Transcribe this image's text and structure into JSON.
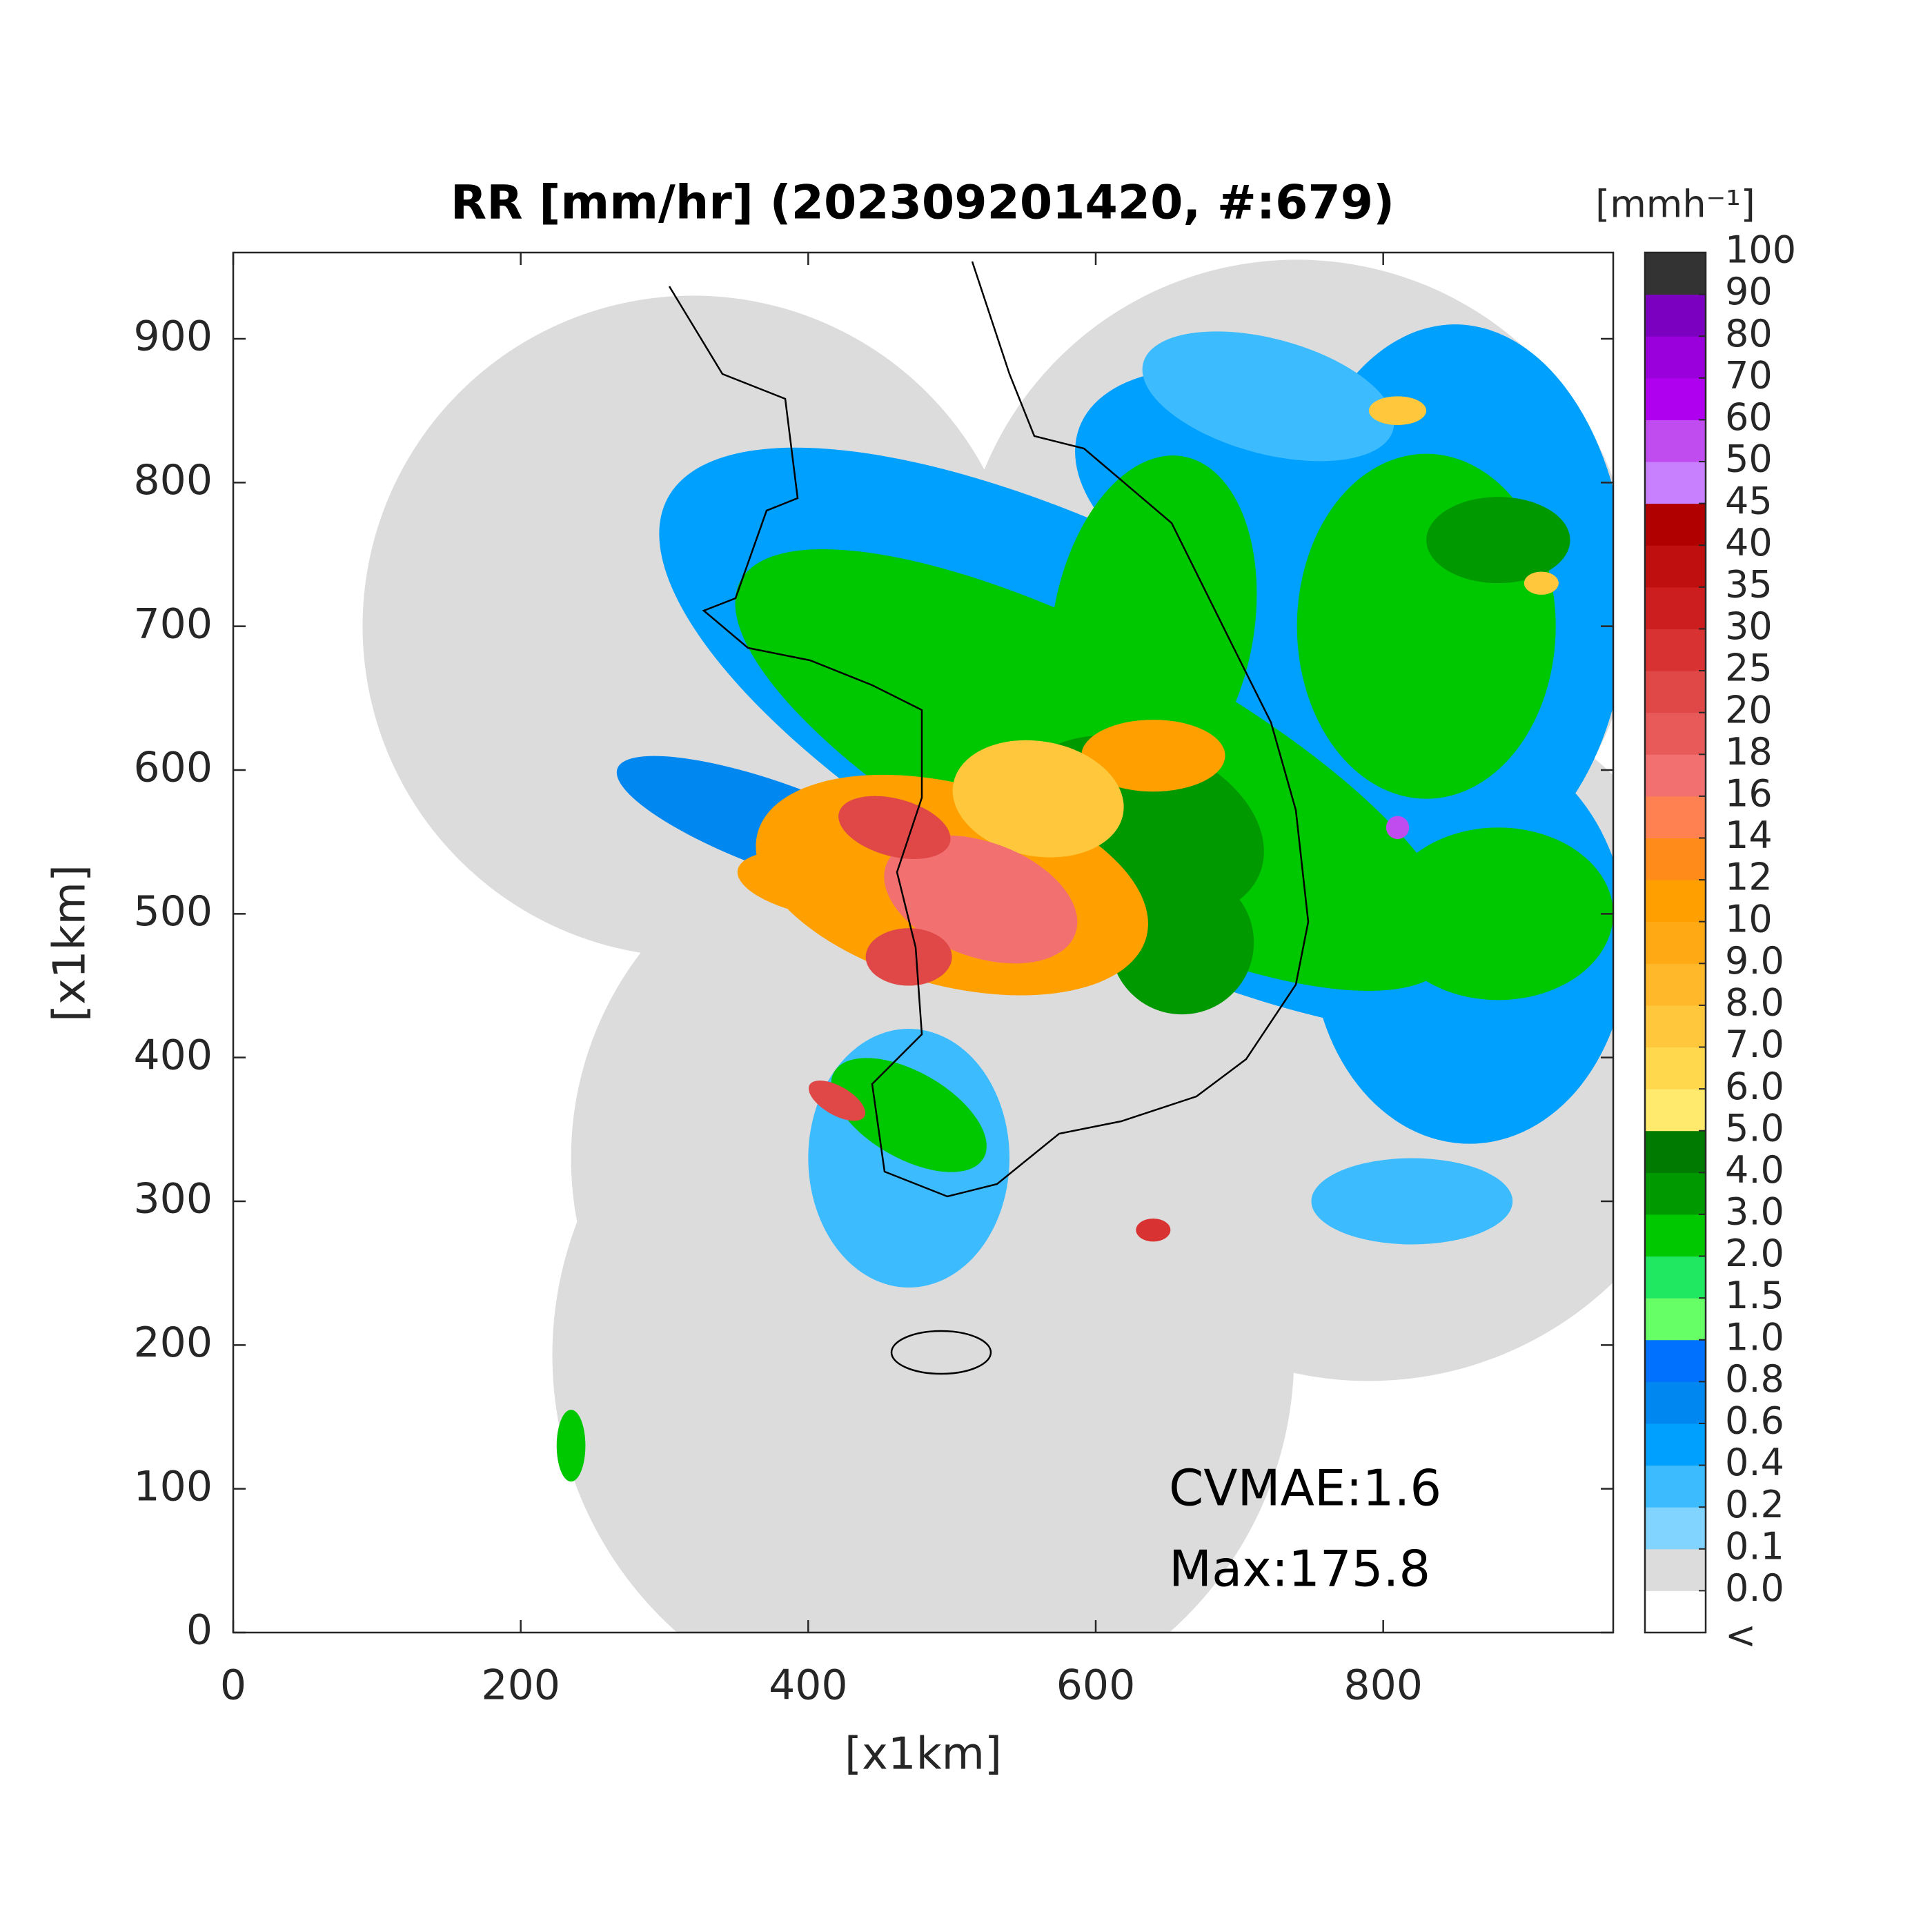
{
  "chart_data": {
    "type": "radar-map",
    "title": "RR [mm/hr] (202309201420, #:679)",
    "xlabel": "[x1km]",
    "ylabel": "[x1km]",
    "xlim": [
      0,
      960
    ],
    "ylim": [
      0,
      960
    ],
    "xticks": [
      0,
      200,
      400,
      600,
      800
    ],
    "yticks": [
      0,
      100,
      200,
      300,
      400,
      500,
      600,
      700,
      800,
      900
    ],
    "annotations": [
      "CVMAE:1.6",
      "Max:175.8"
    ],
    "colorbar": {
      "title": "[mmh⁻¹]",
      "under_label": "<",
      "under_color": "#ffffff",
      "ticks": [
        {
          "value": 0,
          "label": "0.0"
        },
        0.1,
        0.2,
        0.4,
        0.6,
        0.8,
        {
          "value": 1,
          "label": "1.0"
        },
        1.5,
        {
          "value": 2,
          "label": "2.0"
        },
        {
          "value": 3,
          "label": "3.0"
        },
        {
          "value": 4,
          "label": "4.0"
        },
        {
          "value": 5,
          "label": "5.0"
        },
        {
          "value": 6,
          "label": "6.0"
        },
        {
          "value": 7,
          "label": "7.0"
        },
        {
          "value": 8,
          "label": "8.0"
        },
        {
          "value": 9,
          "label": "9.0"
        },
        10,
        12,
        14,
        16,
        18,
        20,
        25,
        30,
        35,
        40,
        45,
        50,
        60,
        70,
        80,
        90,
        100
      ],
      "colors": [
        "#dcdcdc",
        "#80d4ff",
        "#3cbcff",
        "#00a0ff",
        "#0087f0",
        "#0070ff",
        "#66ff66",
        "#20e860",
        "#00c800",
        "#009900",
        "#007a00",
        "#ffea6e",
        "#ffd84e",
        "#ffc83c",
        "#ffb82a",
        "#ffaa14",
        "#ffa000",
        "#ff8c1a",
        "#ff8050",
        "#f27070",
        "#e85a5a",
        "#e04848",
        "#d83232",
        "#cc1e1e",
        "#c00f0f",
        "#b00000",
        "#c880ff",
        "#c04cf0",
        "#b000f0",
        "#9a00dc",
        "#7c00bf",
        "#333333"
      ]
    }
  }
}
